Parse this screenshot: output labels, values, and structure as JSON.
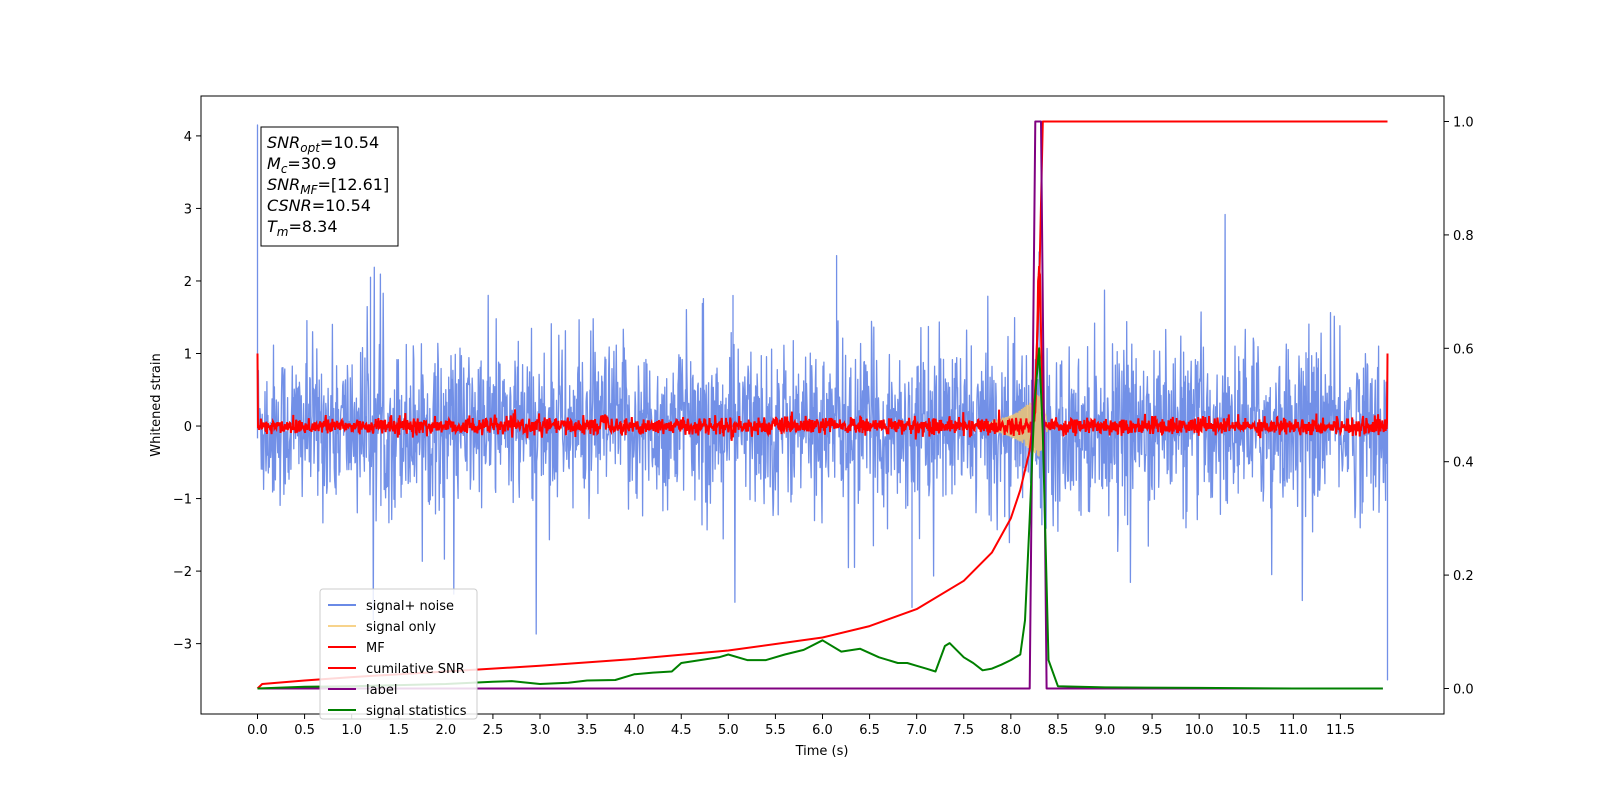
{
  "chart_data": {
    "type": "line",
    "xlabel": "Time (s)",
    "ylabel": "Whitened strain",
    "xlim": [
      -0.6,
      12.6
    ],
    "ylim": [
      -3.97,
      4.55
    ],
    "y2lim": [
      -0.045,
      1.045
    ],
    "grid": false,
    "x_ticks": [
      0.0,
      0.5,
      1.0,
      1.5,
      2.0,
      2.5,
      3.0,
      3.5,
      4.0,
      4.5,
      5.0,
      5.5,
      6.0,
      6.5,
      7.0,
      7.5,
      8.0,
      8.5,
      9.0,
      9.5,
      10.0,
      10.5,
      11.0,
      11.5
    ],
    "x_tick_labels": [
      "0.0",
      "0.5",
      "1.0",
      "1.5",
      "2.0",
      "2.5",
      "3.0",
      "3.5",
      "4.0",
      "4.5",
      "5.0",
      "5.5",
      "6.0",
      "6.5",
      "7.0",
      "7.5",
      "8.0",
      "8.5",
      "9.0",
      "9.5",
      "10.0",
      "10.5",
      "11.0",
      "11.5"
    ],
    "y_ticks": [
      -3,
      -2,
      -1,
      0,
      1,
      2,
      3,
      4
    ],
    "y_tick_labels": [
      "−3",
      "−2",
      "−1",
      "0",
      "1",
      "2",
      "3",
      "4"
    ],
    "y2_ticks": [
      0.0,
      0.2,
      0.4,
      0.6,
      0.8,
      1.0
    ],
    "y2_tick_labels": [
      "0.0",
      "0.2",
      "0.4",
      "0.6",
      "0.8",
      "1.0"
    ],
    "info_box": {
      "lines": [
        {
          "sym": "SNR",
          "sub": "opt",
          "val": "=10.54"
        },
        {
          "sym": "M",
          "sub": "c",
          "val": "=30.9"
        },
        {
          "sym": "SNR",
          "sub": "MF",
          "val": "=[12.61]"
        },
        {
          "sym": "CSNR",
          "sub": "",
          "val": "=10.54"
        },
        {
          "sym": "T",
          "sub": "m",
          "val": "=8.34"
        }
      ]
    },
    "legend_position": "lower-left",
    "series": [
      {
        "name": "signal+ noise",
        "axis": "left",
        "color": "#6a8ae6",
        "style": "noise",
        "x_range": [
          0.0,
          12.0
        ],
        "std": 0.55,
        "spike_points": [
          [
            0.0,
            4.15
          ],
          [
            0.0,
            2.2
          ],
          [
            1.2,
            2.05
          ],
          [
            5.05,
            1.8
          ],
          [
            6.15,
            2.35
          ],
          [
            6.95,
            -2.5
          ],
          [
            8.3,
            2.4
          ],
          [
            12.0,
            -3.5
          ]
        ]
      },
      {
        "name": "signal only",
        "axis": "left",
        "color": "#f5c86e",
        "style": "chirp",
        "x": [
          7.7,
          7.9,
          8.0,
          8.1,
          8.2,
          8.26,
          8.3,
          8.34,
          8.4
        ],
        "amplitude": [
          0.02,
          0.1,
          0.15,
          0.22,
          0.32,
          0.42,
          0.45,
          0.3,
          0.0
        ]
      },
      {
        "name": "MF",
        "axis": "left",
        "color": "#ff0000",
        "style": "mf",
        "x_range": [
          0.0,
          12.0
        ],
        "std": 0.06,
        "peak": [
          8.3,
          2.2
        ],
        "edges": [
          [
            0.0,
            1.0
          ],
          [
            12.0,
            1.0
          ]
        ]
      },
      {
        "name": "cumilative SNR",
        "axis": "right",
        "color": "#ff0000",
        "style": "line",
        "x": [
          0.0,
          0.05,
          0.5,
          1.0,
          2.0,
          3.0,
          4.0,
          5.0,
          6.0,
          6.5,
          7.0,
          7.5,
          7.8,
          8.0,
          8.1,
          8.2,
          8.25,
          8.3,
          8.34,
          8.4,
          9.0,
          10.0,
          11.0,
          12.0
        ],
        "y": [
          0.0,
          0.008,
          0.014,
          0.02,
          0.03,
          0.04,
          0.052,
          0.067,
          0.09,
          0.11,
          0.14,
          0.19,
          0.24,
          0.3,
          0.35,
          0.42,
          0.5,
          0.7,
          1.0,
          1.0,
          1.0,
          1.0,
          1.0,
          1.0
        ]
      },
      {
        "name": "label",
        "axis": "right",
        "color": "#800080",
        "style": "line",
        "x": [
          0.0,
          8.2,
          8.26,
          8.32,
          8.38,
          11.95
        ],
        "y": [
          0.0,
          0.0,
          1.0,
          1.0,
          0.0,
          0.0
        ]
      },
      {
        "name": "signal statistics",
        "axis": "right",
        "color": "#008000",
        "style": "line",
        "x": [
          0.0,
          0.5,
          1.0,
          1.5,
          2.0,
          2.5,
          2.7,
          3.0,
          3.3,
          3.5,
          3.8,
          4.0,
          4.2,
          4.4,
          4.5,
          4.7,
          4.9,
          5.0,
          5.2,
          5.4,
          5.6,
          5.8,
          6.0,
          6.2,
          6.4,
          6.6,
          6.8,
          6.9,
          7.0,
          7.1,
          7.2,
          7.3,
          7.35,
          7.5,
          7.6,
          7.7,
          7.8,
          7.9,
          8.0,
          8.1,
          8.15,
          8.2,
          8.25,
          8.3,
          8.34,
          8.4,
          8.5,
          9.0,
          10.0,
          11.0,
          11.95
        ],
        "y": [
          0.0,
          0.003,
          0.004,
          0.006,
          0.008,
          0.012,
          0.013,
          0.008,
          0.01,
          0.014,
          0.015,
          0.025,
          0.028,
          0.03,
          0.045,
          0.05,
          0.055,
          0.06,
          0.05,
          0.05,
          0.06,
          0.068,
          0.085,
          0.065,
          0.07,
          0.055,
          0.045,
          0.045,
          0.04,
          0.035,
          0.03,
          0.075,
          0.08,
          0.055,
          0.045,
          0.032,
          0.035,
          0.042,
          0.05,
          0.06,
          0.12,
          0.3,
          0.5,
          0.6,
          0.45,
          0.05,
          0.004,
          0.002,
          0.001,
          0.0,
          0.0
        ]
      }
    ]
  }
}
